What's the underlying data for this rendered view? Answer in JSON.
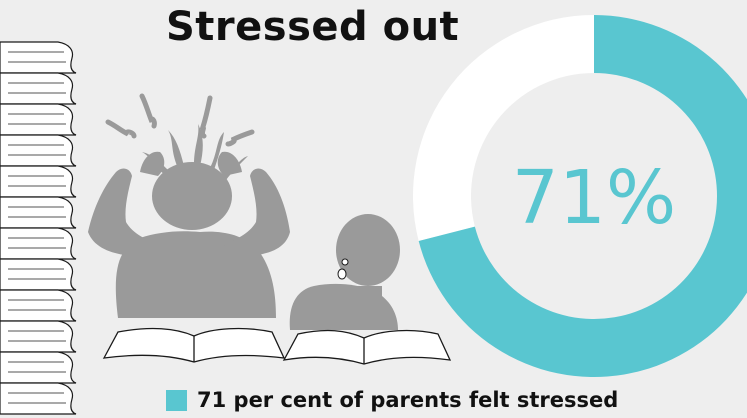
{
  "title": "Stressed out",
  "chart_data": {
    "type": "pie",
    "categories": [
      "Stressed"
    ],
    "values": [
      71
    ],
    "center_label": "71%",
    "legend": "71 per cent of parents felt stressed",
    "colors": {
      "value": "#59c6d0",
      "remainder": "#ffffff",
      "background": "#eeeeee",
      "text": "#111111",
      "illustration": "#9a9a9a"
    }
  },
  "illustration": {
    "elements": [
      "book-stack",
      "stressed-parent",
      "worried-child",
      "open-books"
    ]
  }
}
